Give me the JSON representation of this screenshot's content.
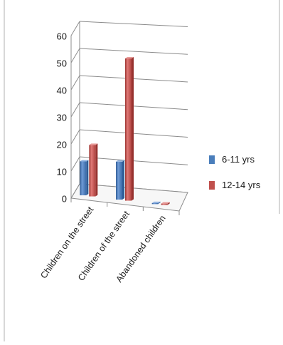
{
  "chart_data": {
    "type": "bar",
    "categories": [
      "Children on the street",
      "Children of the street",
      "Abandoned children"
    ],
    "series": [
      {
        "name": "6-11 yrs",
        "values": [
          12.5,
          14,
          0.3
        ],
        "color": "#4a7ebb"
      },
      {
        "name": "12-14 yrs",
        "values": [
          19,
          52.5,
          0.5
        ],
        "color": "#c0504d"
      }
    ],
    "title": "",
    "xlabel": "",
    "ylabel": "",
    "ylim": [
      0,
      60
    ],
    "yticks": [
      "0",
      "10",
      "20",
      "30",
      "40",
      "50",
      "60"
    ],
    "grid": true,
    "legend": "right",
    "style": "3d-column"
  }
}
